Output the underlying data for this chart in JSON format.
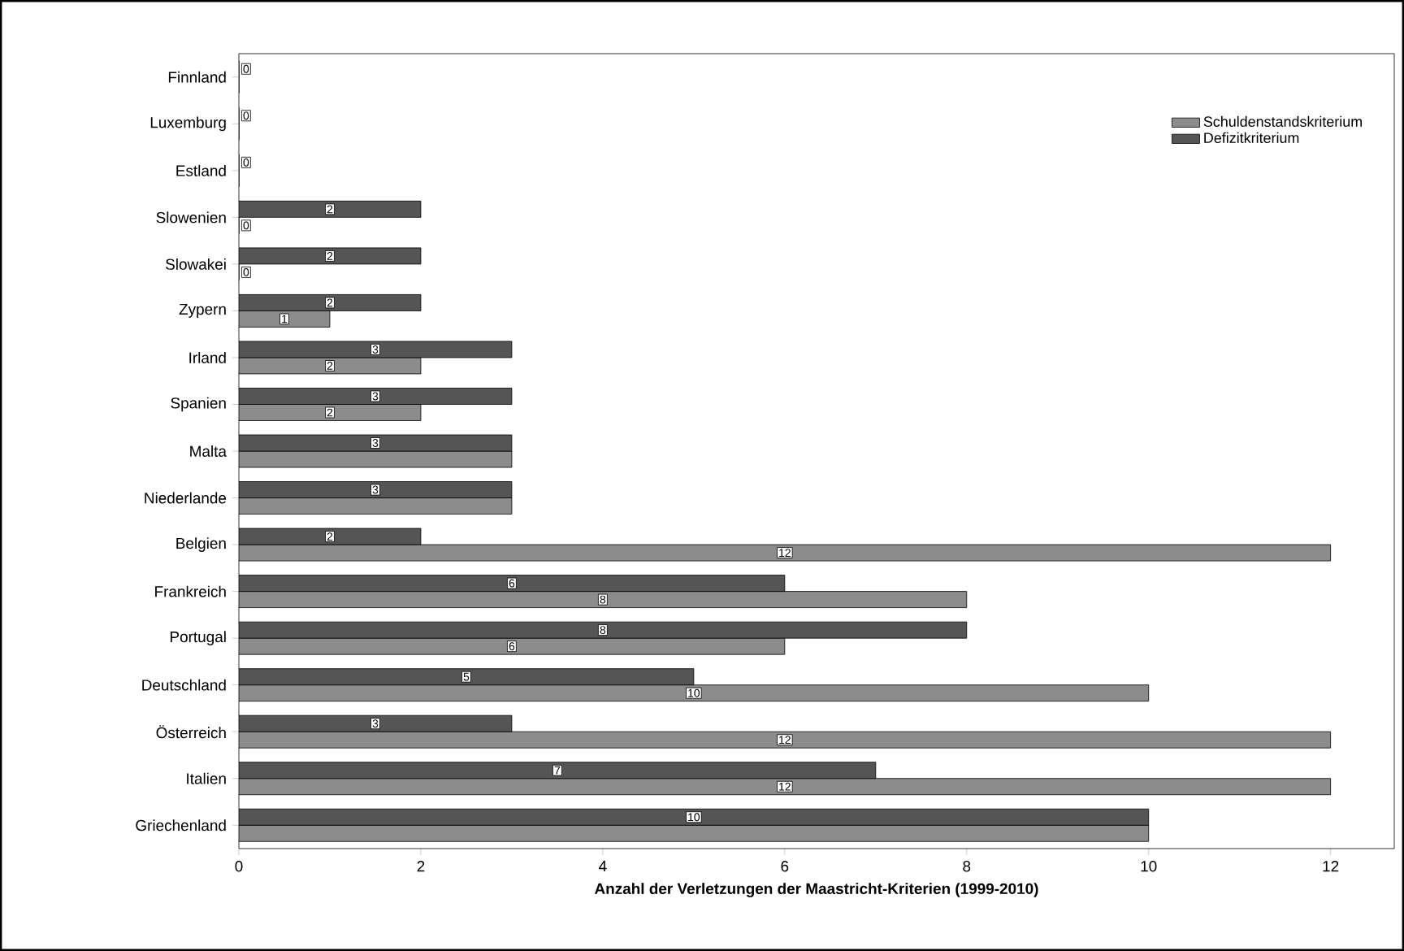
{
  "chart_data": {
    "type": "bar",
    "orientation": "horizontal",
    "xlabel": "Anzahl der Verletzungen der Maastricht-Kriterien (1999-2010)",
    "categories": [
      "Finnland",
      "Luxemburg",
      "Estland",
      "Slowenien",
      "Slowakei",
      "Zypern",
      "Irland",
      "Spanien",
      "Malta",
      "Niederlande",
      "Belgien",
      "Frankreich",
      "Portugal",
      "Deutschland",
      "Österreich",
      "Italien",
      "Griechenland"
    ],
    "series": [
      {
        "name": "Schuldenstandskriterium",
        "color": "#8c8c8c",
        "values": [
          0,
          0,
          0,
          0,
          0,
          1,
          2,
          2,
          3,
          3,
          12,
          8,
          6,
          10,
          12,
          12,
          10
        ],
        "value_labels": [
          null,
          null,
          null,
          "0",
          "0",
          "1",
          "2",
          "2",
          null,
          null,
          "12",
          "8",
          "6",
          "10",
          "12",
          "12",
          null
        ]
      },
      {
        "name": "Defizitkriterium",
        "color": "#555555",
        "values": [
          0,
          0,
          0,
          2,
          2,
          2,
          3,
          3,
          3,
          3,
          2,
          6,
          8,
          5,
          3,
          7,
          10
        ],
        "value_labels": [
          "0",
          "0",
          "0",
          "2",
          "2",
          "2",
          "3",
          "3",
          "3",
          "3",
          "2",
          "6",
          "8",
          "5",
          "3",
          "7",
          "10"
        ]
      }
    ],
    "xlim": [
      0,
      12.7
    ],
    "xticks": [
      0,
      2,
      4,
      6,
      8,
      10,
      12
    ],
    "legend": "top right",
    "grid": false
  }
}
